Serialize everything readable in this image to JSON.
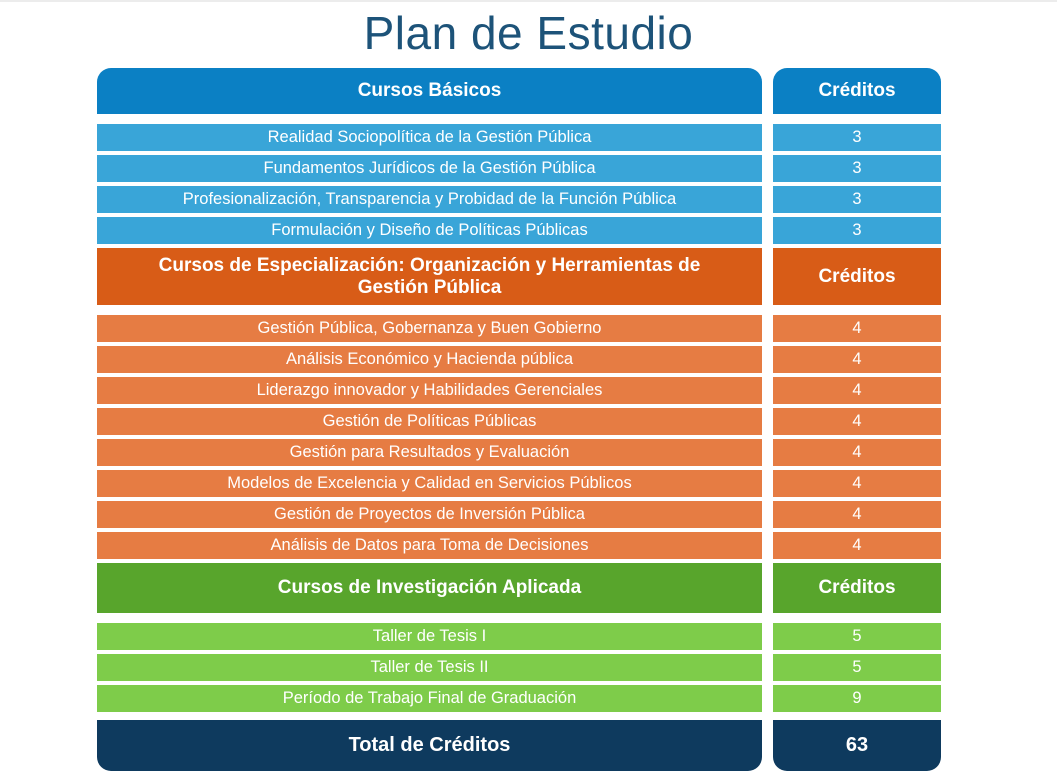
{
  "page": {
    "title": "Plan de Estudio"
  },
  "colors": {
    "title_text": "#1d5379",
    "basicos_header_bg": "#0b80c4",
    "basicos_row_bg": "#39a5d8",
    "especializacion_header_bg": "#d85c17",
    "especializacion_row_bg": "#e67c43",
    "investigacion_header_bg": "#58a52c",
    "investigacion_row_bg": "#7ecc4a",
    "total_bg": "#0e3a5e",
    "row_text": "#ffffff"
  },
  "sections": [
    {
      "id": "cursos-basicos",
      "header": "Cursos Básicos",
      "credits_header": "Créditos",
      "rows": [
        {
          "course": "Realidad Sociopolítica de la Gestión Pública",
          "credits": "3"
        },
        {
          "course": "Fundamentos Jurídicos de la Gestión Pública",
          "credits": "3"
        },
        {
          "course": "Profesionalización, Transparencia y Probidad de la Función Pública",
          "credits": "3"
        },
        {
          "course": "Formulación y Diseño de Políticas Públicas",
          "credits": "3"
        }
      ]
    },
    {
      "id": "cursos-especializacion",
      "header": "Cursos de Especialización: Organización y Herramientas de Gestión Pública",
      "credits_header": "Créditos",
      "rows": [
        {
          "course": "Gestión Pública, Gobernanza y Buen Gobierno",
          "credits": "4"
        },
        {
          "course": "Análisis Económico y Hacienda pública",
          "credits": "4"
        },
        {
          "course": "Liderazgo innovador y Habilidades Gerenciales",
          "credits": "4"
        },
        {
          "course": "Gestión de Políticas Públicas",
          "credits": "4"
        },
        {
          "course": "Gestión para Resultados y Evaluación",
          "credits": "4"
        },
        {
          "course": "Modelos de Excelencia y Calidad en Servicios Públicos",
          "credits": "4"
        },
        {
          "course": "Gestión de Proyectos de Inversión Pública",
          "credits": "4"
        },
        {
          "course": "Análisis de Datos para Toma de Decisiones",
          "credits": "4"
        }
      ]
    },
    {
      "id": "cursos-investigacion",
      "header": "Cursos de Investigación Aplicada",
      "credits_header": "Créditos",
      "rows": [
        {
          "course": "Taller de Tesis I",
          "credits": "5"
        },
        {
          "course": "Taller de Tesis II",
          "credits": "5"
        },
        {
          "course": "Período de Trabajo Final de Graduación",
          "credits": "9"
        }
      ]
    }
  ],
  "footer": {
    "label": "Total de Créditos",
    "total": "63"
  }
}
